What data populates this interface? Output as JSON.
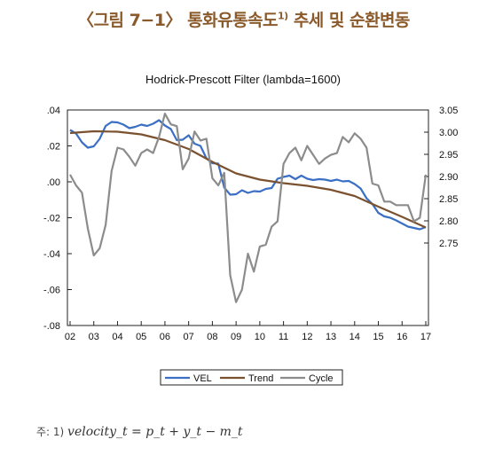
{
  "header": {
    "title": "〈그림 7−1〉 통화유통속도",
    "title_sup": "1)",
    "title_suffix": " 추세 및 순환변동"
  },
  "footnote": {
    "label": "주: 1) ",
    "formula": "velocity_t = p_t + y_t − m_t"
  },
  "colors": {
    "VEL": "#3a6fc4",
    "Trend": "#7a5230",
    "Cycle": "#8c8c8c"
  },
  "chart_data": {
    "type": "line",
    "title": "Hodrick-Prescott Filter (lambda=1600)",
    "x_ticks": [
      "02",
      "03",
      "04",
      "05",
      "06",
      "07",
      "08",
      "09",
      "10",
      "11",
      "12",
      "13",
      "14",
      "15",
      "16",
      "17"
    ],
    "x_range": [
      2002.0,
      2017.0
    ],
    "left_axis": {
      "ylim": [
        -0.08,
        0.04
      ],
      "ticks": [
        ".04",
        ".02",
        ".00",
        "-.02",
        "-.04",
        "-.06",
        "-.08"
      ],
      "tick_values": [
        0.04,
        0.02,
        0.0,
        -0.02,
        -0.04,
        -0.06,
        -0.08
      ]
    },
    "right_axis": {
      "ylim": [
        2.75,
        3.05
      ],
      "ticks": [
        "3.05",
        "3.00",
        "2.95",
        "2.90",
        "2.85",
        "2.80",
        "2.75"
      ],
      "tick_values": [
        3.05,
        3.0,
        2.95,
        2.9,
        2.85,
        2.8,
        2.75
      ]
    },
    "grid": false,
    "legend_position": "bottom",
    "series": [
      {
        "name": "VEL",
        "axis": "right",
        "x": [
          2002.0,
          2002.25,
          2002.5,
          2002.75,
          2003.0,
          2003.25,
          2003.5,
          2003.75,
          2004.0,
          2004.25,
          2004.5,
          2004.75,
          2005.0,
          2005.25,
          2005.5,
          2005.75,
          2006.0,
          2006.25,
          2006.5,
          2006.75,
          2007.0,
          2007.25,
          2007.5,
          2007.75,
          2008.0,
          2008.25,
          2008.5,
          2008.75,
          2009.0,
          2009.25,
          2009.5,
          2009.75,
          2010.0,
          2010.25,
          2010.5,
          2010.75,
          2011.0,
          2011.25,
          2011.5,
          2011.75,
          2012.0,
          2012.25,
          2012.5,
          2012.75,
          2013.0,
          2013.25,
          2013.5,
          2013.75,
          2014.0,
          2014.25,
          2014.5,
          2014.75,
          2015.0,
          2015.25,
          2015.5,
          2015.75,
          2016.0,
          2016.25,
          2016.5,
          2016.75,
          2017.0
        ],
        "values": [
          3.005,
          2.997,
          2.977,
          2.965,
          2.968,
          2.985,
          3.014,
          3.023,
          3.022,
          3.017,
          3.009,
          3.012,
          3.017,
          3.014,
          3.019,
          3.027,
          3.015,
          3.007,
          2.982,
          2.983,
          2.993,
          2.974,
          2.969,
          2.941,
          2.93,
          2.929,
          2.875,
          2.859,
          2.86,
          2.869,
          2.863,
          2.867,
          2.866,
          2.872,
          2.874,
          2.895,
          2.899,
          2.902,
          2.894,
          2.902,
          2.895,
          2.892,
          2.894,
          2.893,
          2.89,
          2.893,
          2.889,
          2.89,
          2.883,
          2.873,
          2.851,
          2.838,
          2.818,
          2.81,
          2.807,
          2.801,
          2.794,
          2.787,
          2.784,
          2.781,
          2.786
        ]
      },
      {
        "name": "Trend",
        "axis": "right",
        "x": [
          2002.0,
          2003.0,
          2004.0,
          2005.0,
          2006.0,
          2007.0,
          2008.0,
          2009.0,
          2010.0,
          2011.0,
          2012.0,
          2013.0,
          2014.0,
          2015.0,
          2016.0,
          2017.0
        ],
        "values": [
          2.998,
          3.002,
          3.001,
          2.995,
          2.982,
          2.962,
          2.933,
          2.907,
          2.893,
          2.885,
          2.879,
          2.87,
          2.856,
          2.832,
          2.809,
          2.785
        ]
      },
      {
        "name": "Cycle",
        "axis": "left",
        "x": [
          2002.0,
          2002.25,
          2002.5,
          2002.75,
          2003.0,
          2003.25,
          2003.5,
          2003.75,
          2004.0,
          2004.25,
          2004.5,
          2004.75,
          2005.0,
          2005.25,
          2005.5,
          2005.75,
          2006.0,
          2006.25,
          2006.5,
          2006.75,
          2007.0,
          2007.25,
          2007.5,
          2007.75,
          2008.0,
          2008.25,
          2008.5,
          2008.75,
          2009.0,
          2009.25,
          2009.5,
          2009.75,
          2010.0,
          2010.25,
          2010.5,
          2010.75,
          2011.0,
          2011.25,
          2011.5,
          2011.75,
          2012.0,
          2012.25,
          2012.5,
          2012.75,
          2013.0,
          2013.25,
          2013.5,
          2013.75,
          2014.0,
          2014.25,
          2014.5,
          2014.75,
          2015.0,
          2015.25,
          2015.5,
          2015.75,
          2016.0,
          2016.25,
          2016.5,
          2016.75,
          2017.0
        ],
        "values": [
          0.004,
          -0.002,
          -0.006,
          -0.026,
          -0.041,
          -0.037,
          -0.024,
          0.006,
          0.019,
          0.018,
          0.014,
          0.009,
          0.016,
          0.018,
          0.016,
          0.025,
          0.038,
          0.032,
          0.031,
          0.007,
          0.013,
          0.028,
          0.023,
          0.024,
          0.002,
          -0.002,
          0.005,
          -0.052,
          -0.067,
          -0.06,
          -0.04,
          -0.05,
          -0.036,
          -0.035,
          -0.025,
          -0.022,
          0.01,
          0.016,
          0.019,
          0.012,
          0.02,
          0.015,
          0.01,
          0.013,
          0.015,
          0.016,
          0.025,
          0.022,
          0.027,
          0.024,
          0.019,
          -0.001,
          -0.002,
          -0.011,
          -0.011,
          -0.013,
          -0.013,
          -0.013,
          -0.022,
          -0.02,
          0.004
        ]
      }
    ]
  }
}
